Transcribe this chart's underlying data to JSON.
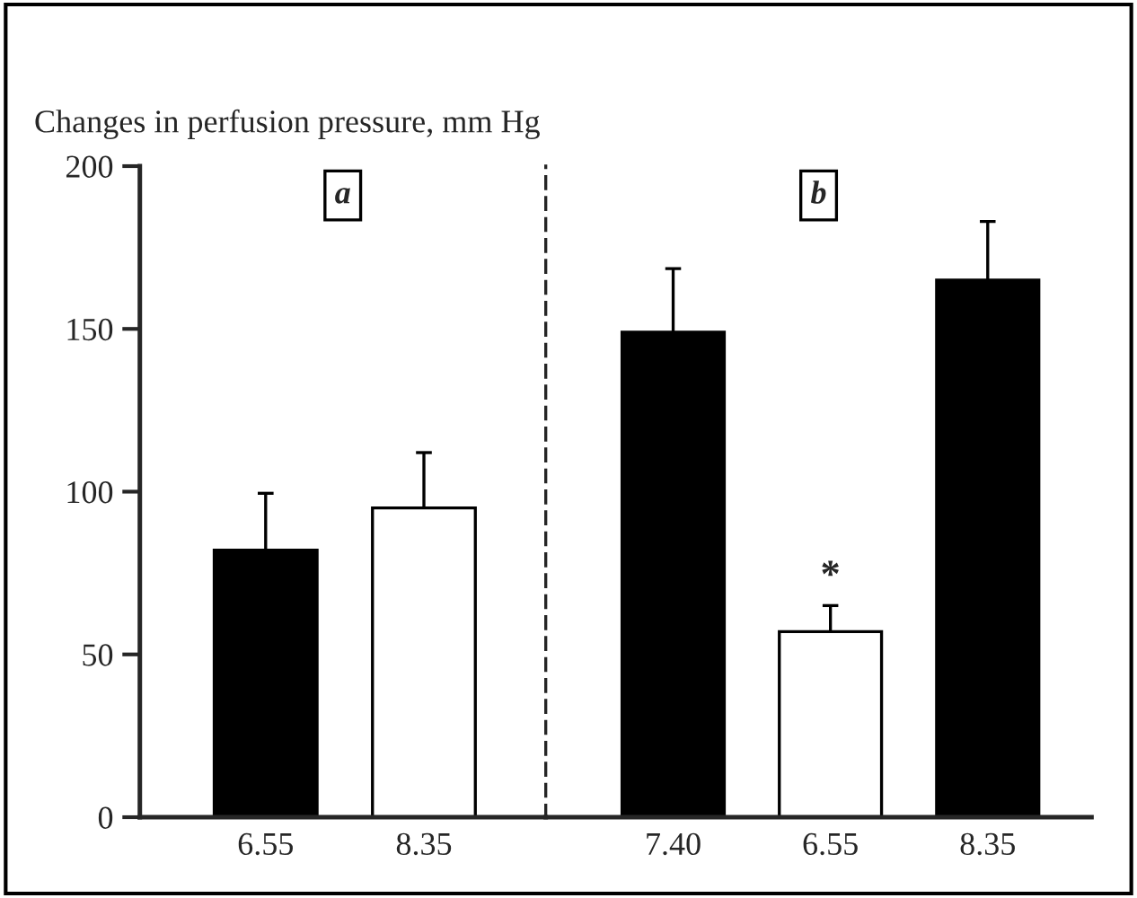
{
  "chart_data": [
    {
      "type": "bar",
      "title": "a",
      "ylabel": "Changes in perfusion pressure, mm Hg",
      "categories": [
        "6.55",
        "8.35"
      ],
      "values": [
        82,
        95
      ],
      "colors": [
        "#000000",
        "#ffffff"
      ],
      "errors": [
        [
          82,
          99.5
        ],
        [
          95,
          112
        ]
      ],
      "ylim": [
        0,
        200
      ],
      "yticks": [
        0,
        50,
        100,
        150,
        200
      ],
      "grid": false,
      "legend": false
    },
    {
      "type": "bar",
      "title": "b",
      "categories": [
        "7.40",
        "6.55",
        "8.35"
      ],
      "values": [
        149,
        57,
        165
      ],
      "colors": [
        "#000000",
        "#ffffff",
        "#000000"
      ],
      "errors": [
        [
          149,
          168.5
        ],
        [
          57,
          65
        ],
        [
          165,
          183
        ]
      ],
      "ylim": [
        0,
        200
      ],
      "tick_labels": "x",
      "grid": false,
      "legend": false,
      "annotations": [
        {
          "text": "*",
          "x": "6.55",
          "y": 65
        }
      ]
    }
  ]
}
